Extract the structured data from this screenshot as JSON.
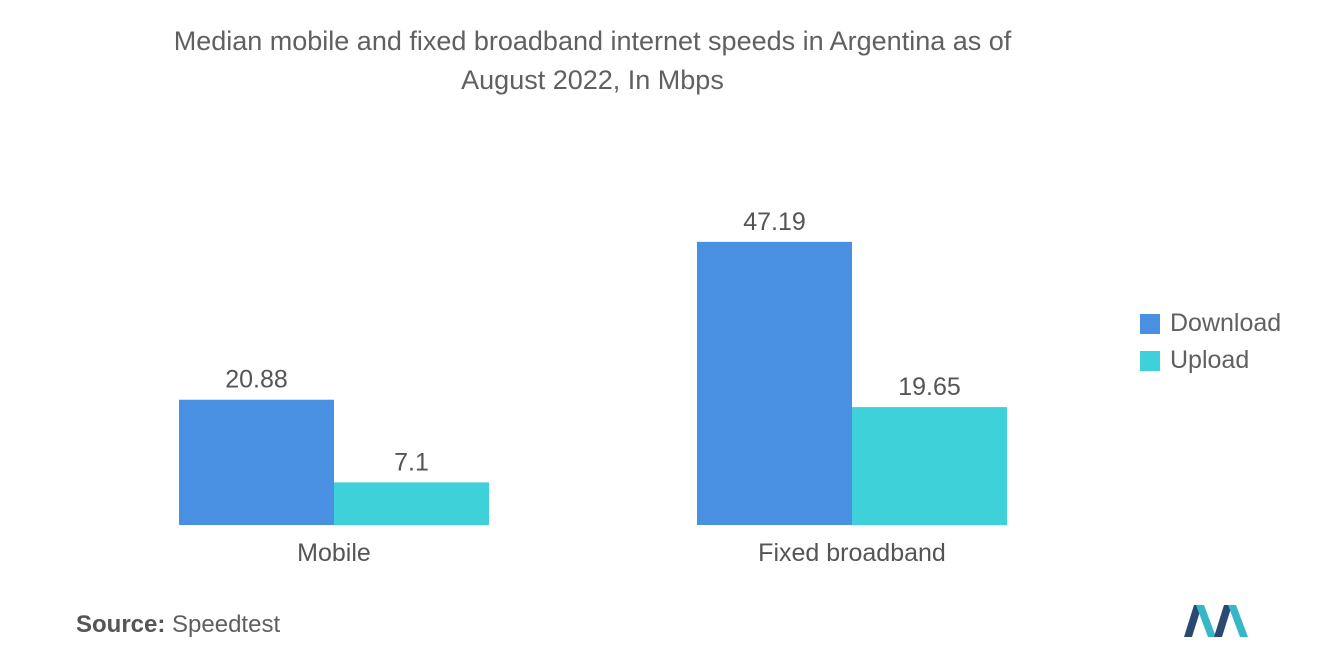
{
  "title_line1": "Median mobile and fixed broadband internet speeds in Argentina as of",
  "title_line2": "August 2022, In Mbps",
  "chart_data": {
    "type": "bar",
    "title": "Median mobile and fixed broadband internet speeds in Argentina as of August 2022, In Mbps",
    "categories": [
      "Mobile",
      "Fixed broadband"
    ],
    "series": [
      {
        "name": "Download",
        "values": [
          20.88,
          47.19
        ],
        "labels": [
          "20.88",
          "47.19"
        ],
        "color": "#4a90e2"
      },
      {
        "name": "Upload",
        "values": [
          7.1,
          19.65
        ],
        "labels": [
          "7.1",
          "19.65"
        ],
        "color": "#3fd1da"
      }
    ],
    "ylim": [
      0,
      50
    ],
    "grid": false,
    "legend_position": "right"
  },
  "source": {
    "label": "Source:",
    "value": "Speedtest"
  },
  "colors": {
    "accent_download": "#4a90e2",
    "accent_upload": "#3fd1da",
    "logo_dark": "#2a4a73",
    "logo_light": "#36b6c9"
  }
}
